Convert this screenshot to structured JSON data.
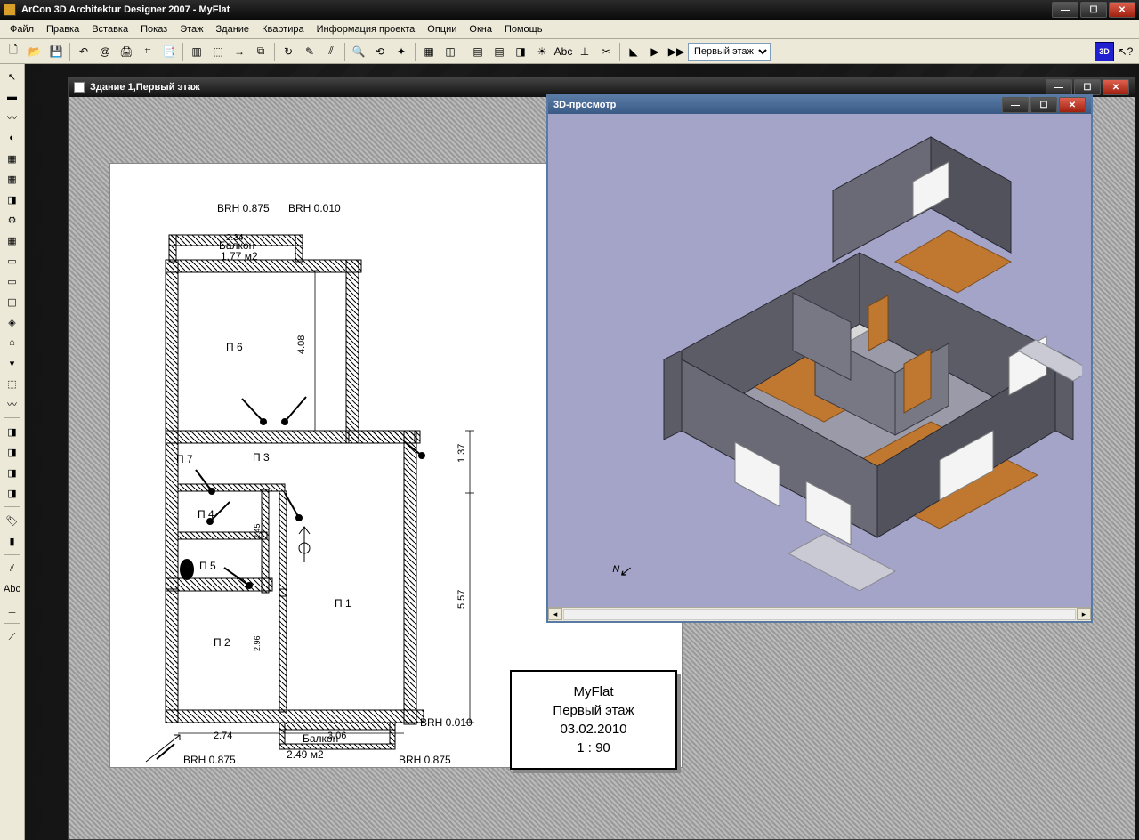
{
  "app": {
    "title": "ArCon 3D Architektur Designer 2007  - MyFlat",
    "btn3d": "3D",
    "help_icon": "❓"
  },
  "menu": [
    "Файл",
    "Правка",
    "Вставка",
    "Показ",
    "Этаж",
    "Здание",
    "Квартира",
    "Информация проекта",
    "Опции",
    "Окна",
    "Помощь"
  ],
  "toolbar": {
    "icons": [
      "🗋",
      "📂",
      "💾",
      "",
      "↶",
      "@",
      "🖨",
      "⌗",
      "📑",
      "",
      "▥",
      "⬚",
      "→",
      "⧉",
      "",
      "↻",
      "✎",
      "⫽",
      "",
      "🔍",
      "⟲",
      "✦",
      "",
      "▦",
      "◫",
      "",
      "▤",
      "▤",
      "◨",
      "☀",
      "Abc",
      "⊥",
      "✂",
      "",
      "◣",
      "▶",
      "▶▶"
    ],
    "floor_options": [
      "Первый этаж"
    ],
    "floor_selected": "Первый этаж"
  },
  "leftbar": {
    "icons": [
      "↖",
      "▬",
      "〰",
      "◐",
      "▦",
      "▦",
      "◨",
      "⚙",
      "▦",
      "▭",
      "▭",
      "◫",
      "◈",
      "⌂",
      "▾",
      "⬚",
      "〰",
      "",
      "◨",
      "◨",
      "◨",
      "◨",
      "",
      "🏷",
      "▮",
      "",
      "⫽",
      "Abc",
      "⊥",
      "",
      "⟋"
    ]
  },
  "document": {
    "title": "Здание 1,Первый этаж"
  },
  "preview3d": {
    "title": "3D-просмотр"
  },
  "titleblock": {
    "name": "MyFlat",
    "floor": "Первый этаж",
    "date": "03.02.2010",
    "scale": "1 : 90"
  },
  "plan": {
    "labels": {
      "brh_top1": "BRH 0.875",
      "brh_top2": "BRH 0.010",
      "brh_mid": "BRH 0.010",
      "brh_bot1": "BRH 0.875",
      "brh_bot2": "BRH 0.875",
      "balcony_top": "Балкон",
      "balcony_top_area": "1.77 м2",
      "balcony_top_dim": "2.34",
      "balcony_bot": "Балкон",
      "balcony_bot_area": "2.49 м2",
      "p1": "П 1",
      "p2": "П 2",
      "p3": "П 3",
      "p4": "П 4",
      "p5": "П 5",
      "p6": "П 6",
      "p7": "П 7",
      "dim_408": "4.08",
      "dim_137": "1.37",
      "dim_557": "5.57",
      "dim_245": "2.45",
      "dim_296": "2.96",
      "dim_274": "2.74",
      "dim_306": "3.06"
    },
    "stroke": "#000000",
    "hatch": "#000000",
    "wall_width": 14
  }
}
